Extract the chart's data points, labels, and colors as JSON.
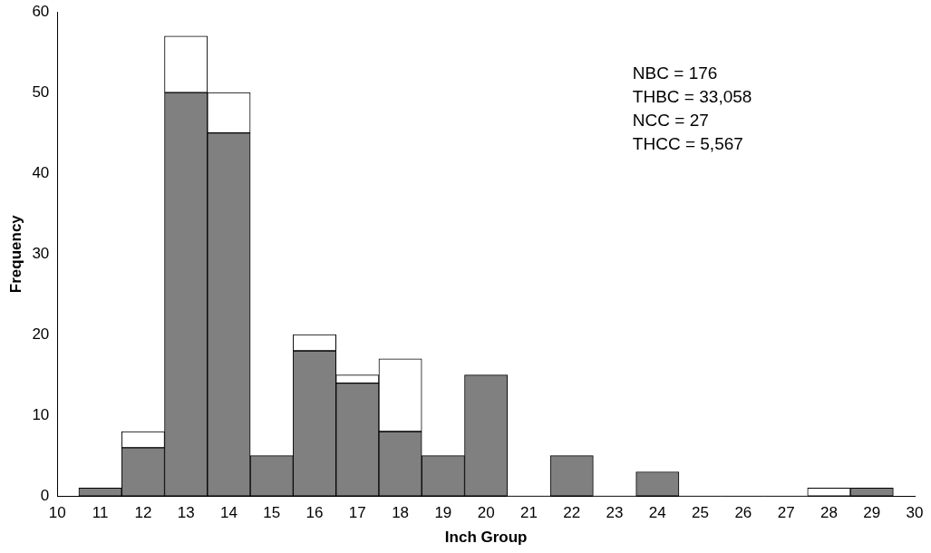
{
  "chart_data": {
    "type": "bar",
    "stacked": true,
    "xlabel": "Inch Group",
    "ylabel": "Frequency",
    "x": [
      11,
      12,
      13,
      14,
      15,
      16,
      17,
      18,
      19,
      20,
      21,
      22,
      23,
      24,
      25,
      26,
      27,
      28,
      29
    ],
    "series": [
      {
        "color": "#808080",
        "values": [
          1,
          6,
          50,
          45,
          5,
          18,
          14,
          8,
          5,
          15,
          0,
          5,
          0,
          3,
          0,
          0,
          0,
          0,
          1
        ]
      },
      {
        "color": "#ffffff",
        "values": [
          0,
          2,
          7,
          5,
          0,
          2,
          1,
          9,
          0,
          0,
          0,
          0,
          0,
          0,
          0,
          0,
          0,
          1,
          0
        ]
      }
    ],
    "xlim": [
      10,
      30
    ],
    "xticks": [
      10,
      11,
      12,
      13,
      14,
      15,
      16,
      17,
      18,
      19,
      20,
      21,
      22,
      23,
      24,
      25,
      26,
      27,
      28,
      29,
      30
    ],
    "ylim": [
      0,
      60
    ],
    "yticks": [
      0,
      10,
      20,
      30,
      40,
      50,
      60
    ],
    "annotations": [
      "NBC = 176",
      "THBC = 33,058",
      "NCC = 27",
      "THCC = 5,567"
    ]
  }
}
